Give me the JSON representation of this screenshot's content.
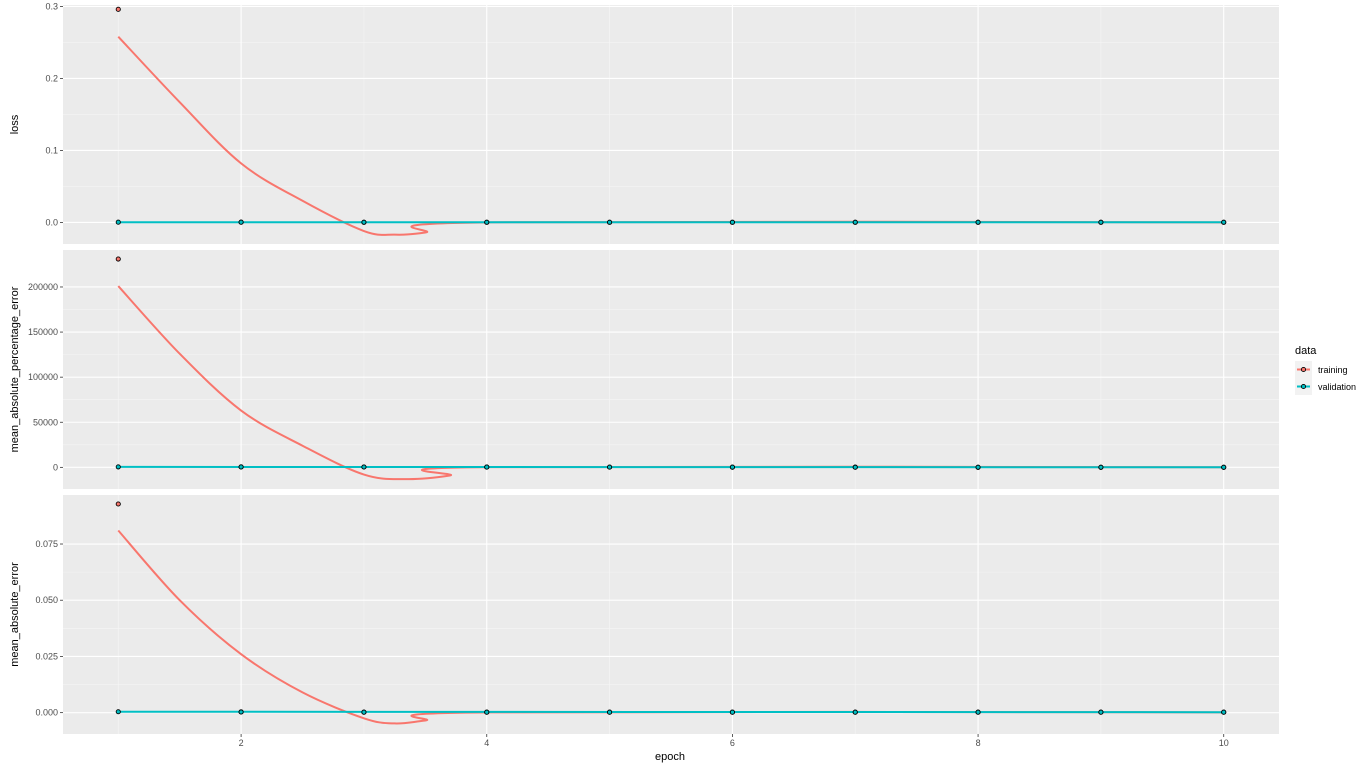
{
  "chart_data": {
    "type": "line",
    "x": [
      1,
      2,
      3,
      4,
      5,
      6,
      7,
      8,
      9,
      10
    ],
    "xlabel": "epoch",
    "xlim": [
      0.55,
      10.45
    ],
    "x_ticks": [
      2,
      4,
      6,
      8,
      10
    ],
    "grid": true,
    "legend": {
      "title": "data",
      "position": "right",
      "entries": [
        {
          "name": "training",
          "color": "#F8766D"
        },
        {
          "name": "validation",
          "color": "#00BFC4"
        }
      ]
    },
    "panels": [
      {
        "ylabel": "loss",
        "ylim": [
          -0.03,
          0.302
        ],
        "y_ticks": [
          0.0,
          0.1,
          0.2,
          0.3
        ],
        "y_tick_labels": [
          "0.0",
          "0.1",
          "0.2",
          "0.3"
        ],
        "series": [
          {
            "name": "training",
            "values": [
              0.296,
              0.0003,
              0.0002,
              0.0002,
              0.0002,
              0.0002,
              0.0002,
              0.0002,
              0.0002,
              0.0002
            ]
          },
          {
            "name": "validation",
            "values": [
              0.0003,
              0.0003,
              0.0002,
              0.0002,
              0.0002,
              0.0002,
              0.0002,
              0.0002,
              0.0002,
              0.0002
            ]
          }
        ],
        "smooth": [
          {
            "name": "training",
            "x": [
              1,
              1.5,
              2,
              2.5,
              3,
              3.25,
              3.5,
              4,
              10
            ],
            "y": [
              0.258,
              0.167,
              0.082,
              0.03,
              -0.012,
              -0.017,
              -0.014,
              0.0001,
              0.0001
            ]
          },
          {
            "name": "validation",
            "x": [
              1,
              10
            ],
            "y": [
              0.0002,
              0.0002
            ]
          }
        ]
      },
      {
        "ylabel": "mean_absolute_percentage_error",
        "ylim": [
          -24000,
          241000
        ],
        "y_ticks": [
          0,
          50000,
          100000,
          150000,
          200000
        ],
        "y_tick_labels": [
          "0",
          "50000",
          "100000",
          "150000",
          "200000"
        ],
        "series": [
          {
            "name": "training",
            "values": [
              231000,
              500,
              400,
              300,
              250,
              200,
              150,
              100,
              80,
              60
            ]
          },
          {
            "name": "validation",
            "values": [
              500,
              450,
              400,
              300,
              250,
              200,
              150,
              100,
              80,
              60
            ]
          }
        ],
        "smooth": [
          {
            "name": "training",
            "x": [
              1,
              1.5,
              2,
              2.5,
              3,
              3.35,
              3.7,
              4,
              10
            ],
            "y": [
              201000,
              126000,
              63000,
              24000,
              -8000,
              -13000,
              -9000,
              200,
              60
            ]
          },
          {
            "name": "validation",
            "x": [
              1,
              10
            ],
            "y": [
              500,
              60
            ]
          }
        ]
      },
      {
        "ylabel": "mean_absolute_error",
        "ylim": [
          -0.0095,
          0.0968
        ],
        "y_ticks": [
          0.0,
          0.025,
          0.05,
          0.075
        ],
        "y_tick_labels": [
          "0.000",
          "0.025",
          "0.050",
          "0.075"
        ],
        "series": [
          {
            "name": "training",
            "values": [
              0.0928,
              0.0003,
              0.0002,
              0.0002,
              0.0002,
              0.0002,
              0.0002,
              0.0002,
              0.0002,
              0.0002
            ]
          },
          {
            "name": "validation",
            "values": [
              0.0004,
              0.0003,
              0.0002,
              0.0002,
              0.0002,
              0.0002,
              0.0002,
              0.0002,
              0.0002,
              0.0002
            ]
          }
        ],
        "smooth": [
          {
            "name": "training",
            "x": [
              1,
              1.5,
              2,
              2.5,
              3,
              3.25,
              3.5,
              4,
              10
            ],
            "y": [
              0.081,
              0.05,
              0.026,
              0.009,
              -0.0025,
              -0.0048,
              -0.0035,
              0.0001,
              0.0001
            ]
          },
          {
            "name": "validation",
            "x": [
              1,
              10
            ],
            "y": [
              0.0004,
              0.0002
            ]
          }
        ]
      }
    ]
  }
}
